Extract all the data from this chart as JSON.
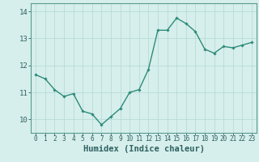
{
  "x": [
    0,
    1,
    2,
    3,
    4,
    5,
    6,
    7,
    8,
    9,
    10,
    11,
    12,
    13,
    14,
    15,
    16,
    17,
    18,
    19,
    20,
    21,
    22,
    23
  ],
  "y": [
    11.65,
    11.5,
    11.1,
    10.85,
    10.95,
    10.3,
    10.2,
    9.8,
    10.1,
    10.4,
    11.0,
    11.1,
    11.85,
    13.3,
    13.3,
    13.75,
    13.55,
    13.25,
    12.6,
    12.45,
    12.7,
    12.65,
    12.75,
    12.85
  ],
  "line_color": "#2e8b7a",
  "marker": "D",
  "marker_size": 1.8,
  "linewidth": 1.0,
  "xlabel": "Humidex (Indice chaleur)",
  "xlim": [
    -0.5,
    23.5
  ],
  "ylim": [
    9.5,
    14.3
  ],
  "yticks": [
    10,
    11,
    12,
    13,
    14
  ],
  "xtick_labels": [
    "0",
    "1",
    "2",
    "3",
    "4",
    "5",
    "6",
    "7",
    "8",
    "9",
    "10",
    "11",
    "12",
    "13",
    "14",
    "15",
    "16",
    "17",
    "18",
    "19",
    "20",
    "21",
    "22",
    "23"
  ],
  "background_color": "#d6efec",
  "grid_color": "#b8dbd7",
  "axes_color": "#5a9a90",
  "tick_color": "#2e6060",
  "xlabel_fontsize": 7.5,
  "ytick_fontsize": 6.5,
  "xtick_fontsize": 5.5
}
